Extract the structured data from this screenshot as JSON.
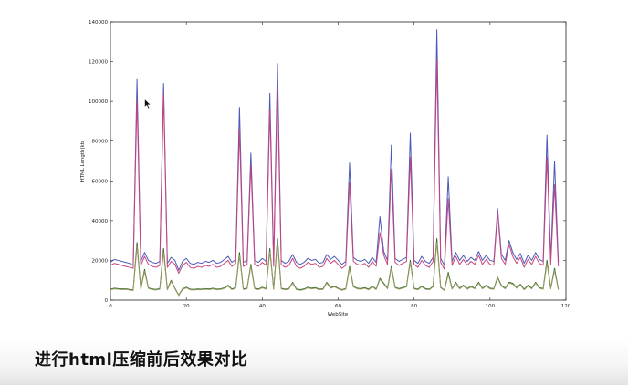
{
  "caption": "进行html压缩前后效果对比",
  "chart_data": {
    "type": "line",
    "xlabel": "WebSite",
    "ylabel": "HTML Length(kb)",
    "xlim": [
      0,
      120
    ],
    "ylim": [
      0,
      140000
    ],
    "xticks": [
      0,
      20,
      40,
      60,
      80,
      100,
      120
    ],
    "yticks": [
      0,
      20000,
      40000,
      60000,
      80000,
      100000,
      120000,
      140000
    ],
    "grid": false,
    "series": [
      {
        "color": "#4b5ab8",
        "values": [
          19000,
          20500,
          20000,
          19500,
          19000,
          18500,
          17500,
          111000,
          19500,
          24000,
          20000,
          19000,
          18500,
          19500,
          109000,
          18500,
          21500,
          20000,
          15000,
          19500,
          21000,
          18500,
          18000,
          19000,
          18500,
          19500,
          19000,
          20000,
          18500,
          19000,
          20500,
          22000,
          19000,
          20500,
          97000,
          19000,
          20000,
          74000,
          20000,
          19000,
          21000,
          19500,
          104000,
          19000,
          119000,
          20000,
          18500,
          19500,
          23000,
          19000,
          18000,
          19000,
          21000,
          20000,
          20500,
          18500,
          19000,
          23000,
          20500,
          22000,
          20000,
          18000,
          19500,
          69000,
          21500,
          20000,
          19500,
          20500,
          18500,
          21500,
          19000,
          42000,
          24500,
          20000,
          78000,
          21000,
          19500,
          20500,
          21500,
          84000,
          20000,
          18500,
          22000,
          19500,
          18500,
          21500,
          136000,
          21000,
          17500,
          62000,
          19500,
          24000,
          20000,
          22500,
          19500,
          21500,
          20000,
          24500,
          20000,
          22500,
          20000,
          19500,
          46000,
          23000,
          20000,
          30000,
          24000,
          20500,
          23500,
          18500,
          22500,
          20000,
          24000,
          20500,
          19500,
          83000,
          20000,
          70000,
          19000
        ],
        "fill": false
      },
      {
        "color": "#c8457e",
        "values": [
          17500,
          18500,
          18000,
          17500,
          17000,
          16500,
          16000,
          101000,
          17500,
          22000,
          18000,
          17000,
          16500,
          17500,
          104000,
          16500,
          19500,
          18000,
          13500,
          17500,
          19000,
          16500,
          16000,
          17000,
          16500,
          17500,
          17000,
          18000,
          16500,
          17000,
          18500,
          20000,
          17000,
          18500,
          86000,
          17000,
          18000,
          68000,
          18000,
          17000,
          19000,
          17500,
          96000,
          17000,
          107000,
          18000,
          16500,
          17500,
          21000,
          17000,
          16000,
          17000,
          19000,
          18000,
          18500,
          16500,
          17000,
          21000,
          18500,
          20000,
          18000,
          16000,
          17500,
          59000,
          19500,
          18000,
          17500,
          18500,
          16500,
          19500,
          17000,
          34000,
          22500,
          18000,
          66000,
          19000,
          17500,
          18500,
          19500,
          72000,
          18000,
          16500,
          20000,
          17500,
          16500,
          19500,
          121000,
          19000,
          15500,
          51000,
          17500,
          22000,
          18000,
          20500,
          17500,
          19500,
          18000,
          22500,
          18000,
          20500,
          18000,
          17500,
          44000,
          21000,
          18000,
          28000,
          22000,
          18500,
          21500,
          16500,
          20500,
          18000,
          22000,
          18500,
          17500,
          72000,
          18000,
          58000,
          17000
        ]
      },
      {
        "color": "#2b6b2b",
        "values": [
          5500,
          6000,
          5800,
          5600,
          5700,
          5400,
          5200,
          29000,
          5800,
          15500,
          6200,
          5600,
          5400,
          5800,
          26000,
          5500,
          10000,
          6000,
          2500,
          5700,
          6500,
          5500,
          5400,
          5600,
          5500,
          5800,
          5600,
          6000,
          5500,
          5700,
          6200,
          7500,
          5600,
          6300,
          24000,
          5700,
          6000,
          18000,
          6000,
          5600,
          6500,
          5800,
          26000,
          5700,
          31000,
          6000,
          5500,
          5800,
          9000,
          5600,
          5300,
          5600,
          6500,
          6000,
          6300,
          5500,
          5700,
          9000,
          6300,
          7000,
          6000,
          5300,
          5800,
          17000,
          7000,
          6000,
          5800,
          6300,
          5500,
          7000,
          5600,
          11000,
          8500,
          6000,
          17000,
          6500,
          5800,
          6300,
          7000,
          20000,
          6000,
          5500,
          7000,
          5800,
          5500,
          7000,
          31000,
          6500,
          5000,
          14000,
          5800,
          9000,
          6000,
          7500,
          5800,
          7000,
          6000,
          9000,
          6000,
          7500,
          6000,
          5800,
          11500,
          7500,
          6000,
          9000,
          8500,
          6300,
          8000,
          5500,
          7500,
          6000,
          9000,
          6300,
          5800,
          20000,
          6000,
          16000,
          5500
        ]
      },
      {
        "color": "#9c9a62",
        "values": [
          5200,
          5700,
          5500,
          5300,
          5400,
          5100,
          4900,
          27000,
          5500,
          14500,
          5900,
          5300,
          5100,
          5500,
          24000,
          5200,
          9500,
          5700,
          2300,
          5400,
          6200,
          5200,
          5100,
          5300,
          5200,
          5500,
          5300,
          5700,
          5200,
          5400,
          5900,
          7100,
          5300,
          6000,
          22500,
          5400,
          5700,
          17000,
          5700,
          5300,
          6200,
          5500,
          24500,
          5400,
          29000,
          5700,
          5200,
          5500,
          8600,
          5300,
          5000,
          5300,
          6200,
          5700,
          6000,
          5200,
          5400,
          8600,
          6000,
          6700,
          5700,
          5000,
          5500,
          16000,
          6700,
          5700,
          5500,
          6000,
          5200,
          6700,
          5300,
          10500,
          8100,
          5700,
          16000,
          6200,
          5500,
          6000,
          6700,
          19000,
          5700,
          5200,
          6700,
          5500,
          5200,
          6700,
          29000,
          6200,
          4800,
          13000,
          5500,
          8600,
          5700,
          7100,
          5500,
          6700,
          5700,
          8600,
          5700,
          7100,
          5700,
          5500,
          11000,
          7100,
          5700,
          8600,
          8100,
          6000,
          7600,
          5200,
          7100,
          5700,
          8600,
          6000,
          5500,
          18500,
          5700,
          15000,
          5200
        ]
      }
    ]
  }
}
